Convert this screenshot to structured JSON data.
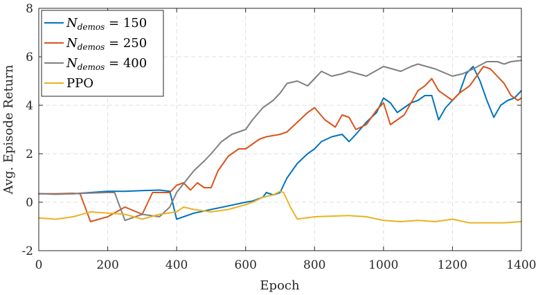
{
  "chart_data": {
    "type": "line",
    "title": "",
    "xlabel": "Epoch",
    "ylabel": "Avg. Episode Return",
    "xlim": [
      0,
      1400
    ],
    "ylim": [
      -2,
      8
    ],
    "xticks": [
      0,
      200,
      400,
      600,
      800,
      1000,
      1200,
      1400
    ],
    "yticks": [
      -2,
      0,
      2,
      4,
      6,
      8
    ],
    "xtick_labels": [
      "0",
      "200",
      "400",
      "600",
      "800",
      "1000",
      "1200",
      "1400"
    ],
    "ytick_labels": [
      "-2",
      "0",
      "2",
      "4",
      "6",
      "8"
    ],
    "grid": true,
    "legend_position": "top-left",
    "series": [
      {
        "legend": {
          "sym": "N",
          "sub": "demos",
          "rest": " = 150"
        },
        "color": "#0072BD",
        "x": [
          0,
          50,
          100,
          150,
          200,
          250,
          300,
          350,
          380,
          400,
          450,
          500,
          550,
          600,
          620,
          650,
          660,
          680,
          700,
          720,
          750,
          780,
          800,
          820,
          850,
          880,
          900,
          920,
          950,
          980,
          1000,
          1020,
          1040,
          1060,
          1080,
          1100,
          1120,
          1140,
          1160,
          1180,
          1200,
          1220,
          1240,
          1260,
          1280,
          1300,
          1320,
          1340,
          1360,
          1380,
          1400
        ],
        "y": [
          0.35,
          0.33,
          0.35,
          0.4,
          0.45,
          0.45,
          0.48,
          0.5,
          0.45,
          -0.7,
          -0.45,
          -0.3,
          -0.15,
          0.0,
          0.05,
          0.2,
          0.4,
          0.3,
          0.4,
          1.0,
          1.6,
          2.0,
          2.2,
          2.5,
          2.7,
          2.8,
          2.5,
          2.8,
          3.3,
          3.7,
          4.3,
          4.1,
          3.7,
          3.9,
          4.1,
          4.2,
          4.4,
          4.4,
          3.4,
          3.9,
          4.2,
          4.5,
          5.3,
          5.6,
          5.0,
          4.2,
          3.5,
          4.0,
          4.2,
          4.3,
          4.6
        ]
      },
      {
        "legend": {
          "sym": "N",
          "sub": "demos",
          "rest": " = 250"
        },
        "color": "#D95319",
        "x": [
          0,
          50,
          100,
          120,
          150,
          200,
          250,
          300,
          330,
          350,
          380,
          400,
          420,
          440,
          460,
          480,
          500,
          520,
          550,
          580,
          600,
          640,
          660,
          700,
          720,
          750,
          780,
          800,
          830,
          860,
          880,
          900,
          920,
          950,
          980,
          1000,
          1020,
          1040,
          1060,
          1080,
          1100,
          1120,
          1140,
          1160,
          1180,
          1200,
          1220,
          1250,
          1270,
          1290,
          1310,
          1330,
          1350,
          1370,
          1390,
          1400
        ],
        "y": [
          0.35,
          0.35,
          0.37,
          0.35,
          -0.8,
          -0.6,
          -0.2,
          -0.5,
          0.4,
          0.4,
          0.4,
          0.7,
          0.8,
          0.5,
          0.8,
          0.6,
          0.6,
          1.3,
          1.9,
          2.2,
          2.2,
          2.6,
          2.7,
          2.8,
          2.9,
          3.3,
          3.7,
          3.9,
          3.4,
          3.1,
          3.6,
          3.5,
          3.0,
          3.2,
          3.8,
          4.1,
          3.2,
          3.4,
          3.6,
          4.1,
          4.6,
          4.8,
          5.1,
          4.6,
          4.4,
          4.2,
          4.5,
          4.8,
          5.2,
          5.6,
          5.5,
          5.2,
          4.9,
          4.4,
          4.2,
          4.3
        ]
      },
      {
        "legend": {
          "sym": "N",
          "sub": "demos",
          "rest": " = 400"
        },
        "color": "#7F7F7F",
        "x": [
          0,
          50,
          100,
          150,
          200,
          220,
          250,
          300,
          350,
          380,
          400,
          450,
          480,
          500,
          530,
          560,
          600,
          620,
          650,
          680,
          700,
          720,
          750,
          780,
          800,
          820,
          850,
          880,
          900,
          950,
          1000,
          1050,
          1080,
          1100,
          1150,
          1200,
          1230,
          1260,
          1300,
          1330,
          1350,
          1370,
          1400
        ],
        "y": [
          0.35,
          0.33,
          0.35,
          0.38,
          0.4,
          0.4,
          -0.75,
          -0.5,
          -0.6,
          -0.2,
          0.4,
          1.3,
          1.7,
          2.0,
          2.5,
          2.8,
          3.0,
          3.4,
          3.9,
          4.2,
          4.5,
          4.9,
          5.0,
          4.8,
          5.1,
          5.4,
          5.2,
          5.3,
          5.4,
          5.2,
          5.6,
          5.4,
          5.6,
          5.7,
          5.5,
          5.2,
          5.3,
          5.5,
          5.8,
          5.8,
          5.7,
          5.8,
          5.85
        ]
      },
      {
        "legend": {
          "sym": "",
          "sub": "",
          "rest": "PPO"
        },
        "color": "#EDB120",
        "x": [
          0,
          50,
          100,
          150,
          200,
          250,
          300,
          350,
          400,
          420,
          450,
          500,
          550,
          600,
          620,
          650,
          680,
          700,
          710,
          730,
          750,
          800,
          900,
          950,
          1000,
          1050,
          1100,
          1150,
          1200,
          1250,
          1300,
          1350,
          1400
        ],
        "y": [
          -0.65,
          -0.7,
          -0.6,
          -0.4,
          -0.45,
          -0.5,
          -0.7,
          -0.5,
          -0.4,
          -0.2,
          -0.3,
          -0.4,
          -0.3,
          -0.1,
          0.0,
          0.2,
          0.3,
          0.45,
          0.4,
          -0.2,
          -0.7,
          -0.6,
          -0.55,
          -0.6,
          -0.75,
          -0.8,
          -0.75,
          -0.8,
          -0.7,
          -0.85,
          -0.85,
          -0.85,
          -0.8
        ]
      }
    ]
  }
}
